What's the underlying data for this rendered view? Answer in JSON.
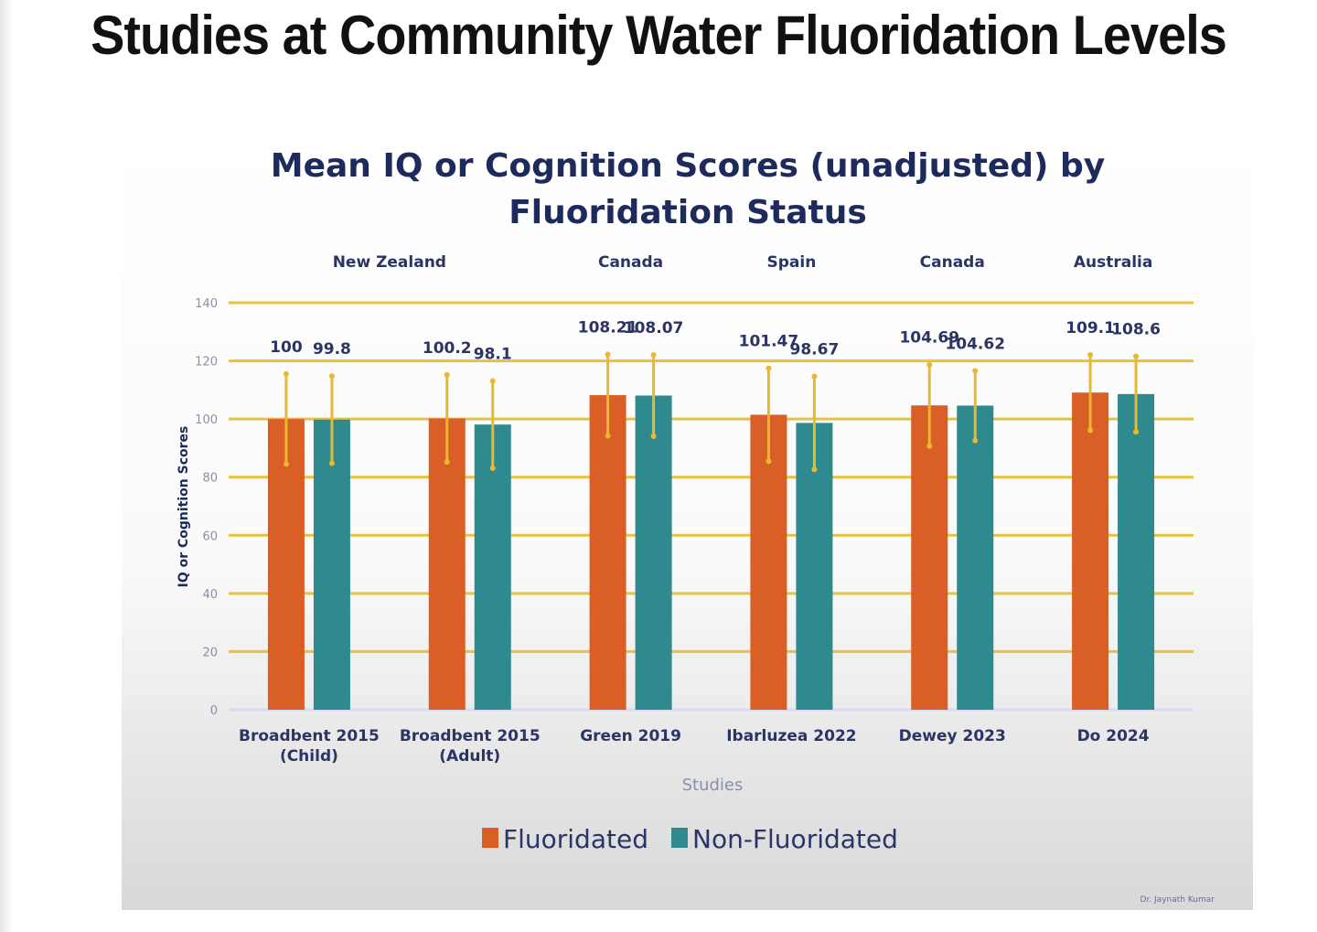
{
  "slide_title": "Studies at Community Water Fluoridation Levels",
  "signature": "Dr. Jaynath Kumar",
  "colors": {
    "fluoridated": "#d95f26",
    "non_fluoridated": "#2e8a8e",
    "grid": "#e9c13a",
    "error_bar": "#e8b830",
    "title": "#1d2a5c"
  },
  "chart_data": {
    "type": "bar",
    "title_line1": "Mean IQ or Cognition Scores (unadjusted) by",
    "title_line2": "Fluoridation Status",
    "xlabel": "Studies",
    "ylabel": "IQ or Cognition Scores",
    "ylim": [
      0,
      140
    ],
    "yticks": [
      "0",
      "20",
      "40",
      "60",
      "80",
      "100",
      "120",
      "140"
    ],
    "grid": true,
    "legend_position": "bottom",
    "categories": [
      "Broadbent 2015 (Child)",
      "Broadbent 2015 (Adult)",
      "Green 2019",
      "Ibarluzea 2022",
      "Dewey 2023",
      "Do 2024"
    ],
    "category_lines": [
      [
        "Broadbent 2015",
        "(Child)"
      ],
      [
        "Broadbent 2015",
        "(Adult)"
      ],
      [
        "Green 2019"
      ],
      [
        "Ibarluzea 2022"
      ],
      [
        "Dewey 2023"
      ],
      [
        "Do 2024"
      ]
    ],
    "countries": [
      {
        "label": "New Zealand",
        "spans": [
          0,
          1
        ]
      },
      {
        "label": "Canada",
        "spans": [
          2,
          2
        ]
      },
      {
        "label": "Spain",
        "spans": [
          3,
          3
        ]
      },
      {
        "label": "Canada",
        "spans": [
          4,
          4
        ]
      },
      {
        "label": "Australia",
        "spans": [
          5,
          5
        ]
      }
    ],
    "series": [
      {
        "name": "Fluoridated",
        "values": [
          100,
          100.2,
          108.21,
          101.47,
          104.69,
          109.1
        ],
        "labels": [
          "100",
          "100.2",
          "108.21",
          "101.47",
          "104.69",
          "109.1"
        ],
        "error": [
          15.5,
          15,
          14,
          16,
          14,
          13
        ]
      },
      {
        "name": "Non-Fluoridated",
        "values": [
          99.8,
          98.1,
          108.07,
          98.67,
          104.62,
          108.6
        ],
        "labels": [
          "99.8",
          "98.1",
          "108.07",
          "98.67",
          "104.62",
          "108.6"
        ],
        "error": [
          15,
          15,
          14,
          16,
          12,
          13
        ]
      }
    ]
  }
}
